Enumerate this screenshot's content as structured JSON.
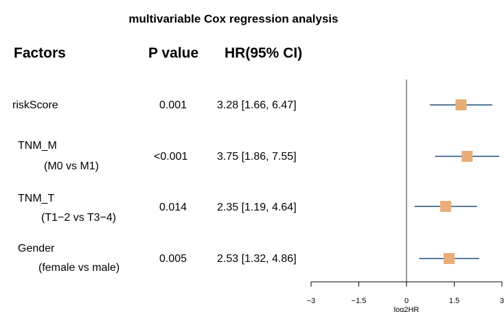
{
  "title": "multivariable Cox regression analysis",
  "headers": {
    "factors": "Factors",
    "pvalue": "P value",
    "hr": "HR(95% CI)"
  },
  "rows": [
    {
      "factor": "riskScore",
      "subfactor": "",
      "pvalue": "0.001",
      "hr_text": "3.28 [1.66, 6.47]"
    },
    {
      "factor": "TNM_M",
      "subfactor": "(M0 vs M1)",
      "pvalue": "<0.001",
      "hr_text": "3.75 [1.86, 7.55]"
    },
    {
      "factor": "TNM_T",
      "subfactor": "(T1−2 vs T3−4)",
      "pvalue": "0.014",
      "hr_text": "2.35 [1.19, 4.64]"
    },
    {
      "factor": "Gender",
      "subfactor": "(female vs male)",
      "pvalue": "0.005",
      "hr_text": "2.53 [1.32, 4.86]"
    }
  ],
  "colors": {
    "box": "#E8AD78",
    "ci_line": "#1F4E79",
    "axis": "#000000",
    "ref_line": "#555555"
  },
  "chart_data": {
    "type": "forest",
    "title": "multivariable Cox regression analysis",
    "xlabel": "log2HR",
    "xlim": [
      -3,
      3
    ],
    "ticks": [
      -3,
      -1.5,
      0,
      1.5,
      3
    ],
    "tick_labels": [
      "−3",
      "−1.5",
      "0",
      "1.5",
      "3"
    ],
    "reference_line": 0,
    "series": [
      {
        "factor": "riskScore",
        "hr": 3.28,
        "lower": 1.66,
        "upper": 6.47
      },
      {
        "factor": "TNM_M",
        "hr": 3.75,
        "lower": 1.86,
        "upper": 7.55
      },
      {
        "factor": "TNM_T",
        "hr": 2.35,
        "lower": 1.19,
        "upper": 4.64
      },
      {
        "factor": "Gender",
        "hr": 2.53,
        "lower": 1.32,
        "upper": 4.86
      }
    ]
  }
}
